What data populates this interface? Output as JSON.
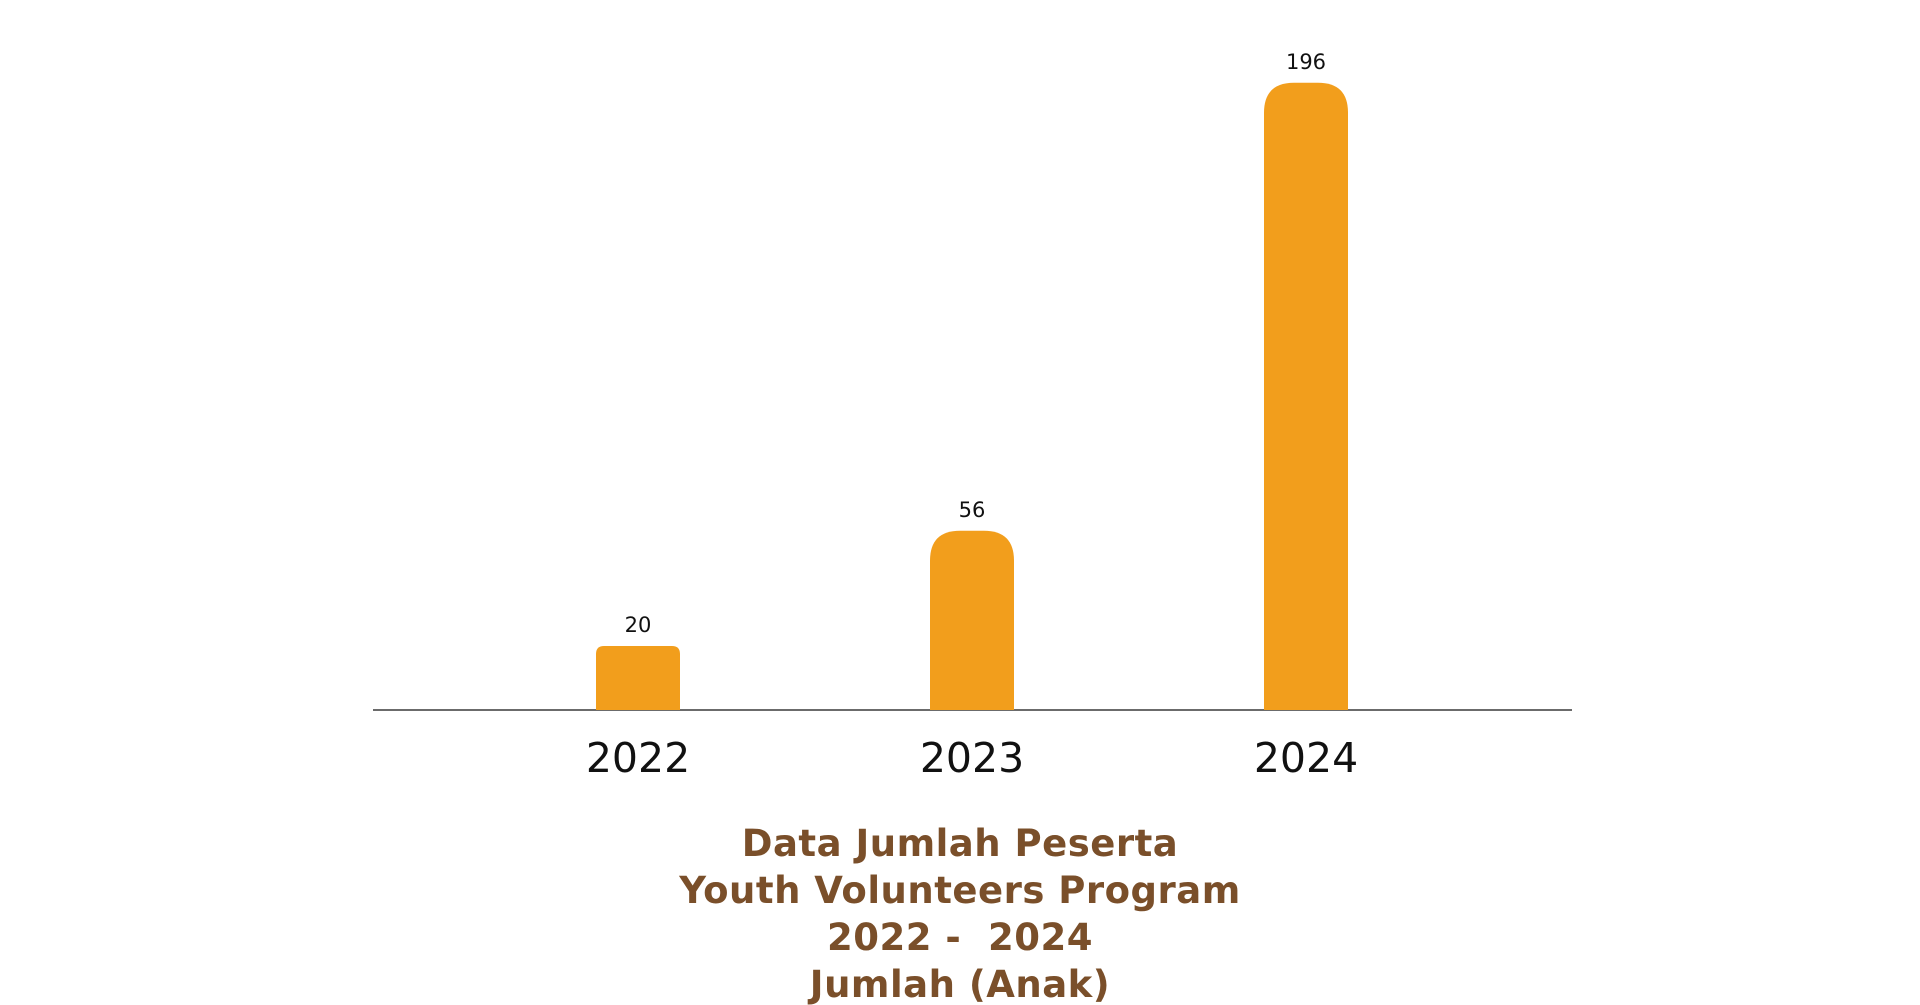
{
  "colors": {
    "bar": "#f29e1c",
    "axis": "#6b6b6b",
    "tick_label": "#111111",
    "data_label": "#111111",
    "caption": "#7a4f2a"
  },
  "chart_data": {
    "type": "bar",
    "categories": [
      "2022",
      "2023",
      "2024"
    ],
    "values": [
      20,
      56,
      196
    ],
    "data_labels": [
      "20",
      "56",
      "196"
    ],
    "ylim": [
      0,
      210
    ],
    "grid": false,
    "legend": "none",
    "title_lines": [
      "Data Jumlah Peserta",
      "Youth Volunteers Program",
      "2022 -  2024",
      "Jumlah (Anak)"
    ],
    "xlabel": "",
    "ylabel": ""
  }
}
